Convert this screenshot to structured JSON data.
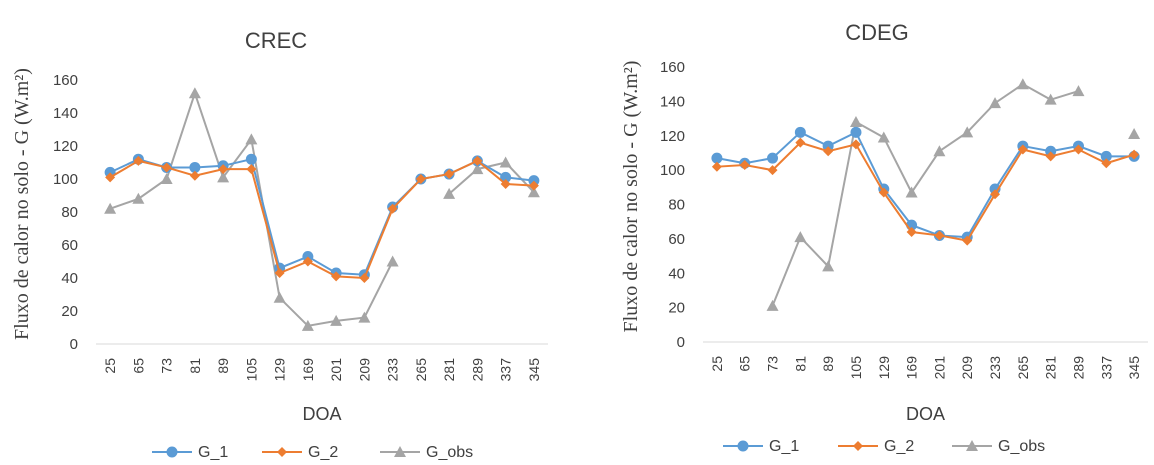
{
  "chart_data": [
    {
      "type": "line",
      "title": "CREC",
      "xlabel": "DOA",
      "ylabel": "Fluxo  de calor no solo - G  (W.m²)",
      "ylim": [
        0,
        160
      ],
      "yticks": [
        0,
        20,
        40,
        60,
        80,
        100,
        120,
        140,
        160
      ],
      "categories": [
        "25",
        "65",
        "73",
        "81",
        "89",
        "105",
        "129",
        "169",
        "201",
        "209",
        "233",
        "265",
        "281",
        "289",
        "337",
        "345"
      ],
      "series": [
        {
          "name": "G_1",
          "color": "#5b9bd5",
          "marker": "circle",
          "values": [
            104,
            112,
            107,
            107,
            108,
            112,
            46,
            53,
            43,
            42,
            83,
            100,
            103,
            111,
            101,
            99
          ]
        },
        {
          "name": "G_2",
          "color": "#ed7d31",
          "marker": "diamond",
          "values": [
            101,
            111,
            107,
            102,
            106,
            106,
            43,
            50,
            41,
            40,
            82,
            100,
            103,
            111,
            97,
            96
          ]
        },
        {
          "name": "G_obs",
          "color": "#a5a5a5",
          "marker": "triangle",
          "values": [
            82,
            88,
            100,
            152,
            101,
            124,
            28,
            11,
            14,
            16,
            50,
            null,
            91,
            106,
            110,
            92
          ]
        }
      ],
      "legend": "bottom",
      "grid": false
    },
    {
      "type": "line",
      "title": "CDEG",
      "xlabel": "DOA",
      "ylabel": "Fluxo  de calor no solo - G  (W.m²)",
      "ylim": [
        0,
        160
      ],
      "yticks": [
        0,
        20,
        40,
        60,
        80,
        100,
        120,
        140,
        160
      ],
      "categories": [
        "25",
        "65",
        "73",
        "81",
        "89",
        "105",
        "129",
        "169",
        "201",
        "209",
        "233",
        "265",
        "281",
        "289",
        "337",
        "345"
      ],
      "series": [
        {
          "name": "G_1",
          "color": "#5b9bd5",
          "marker": "circle",
          "values": [
            107,
            104,
            107,
            122,
            114,
            122,
            89,
            68,
            62,
            61,
            89,
            114,
            111,
            114,
            108,
            108
          ]
        },
        {
          "name": "G_2",
          "color": "#ed7d31",
          "marker": "diamond",
          "values": [
            102,
            103,
            100,
            116,
            111,
            115,
            87,
            64,
            62,
            59,
            86,
            112,
            108,
            112,
            104,
            109
          ]
        },
        {
          "name": "G_obs",
          "color": "#a5a5a5",
          "marker": "triangle",
          "values": [
            null,
            null,
            21,
            61,
            44,
            128,
            119,
            87,
            111,
            122,
            139,
            150,
            141,
            146,
            null,
            121
          ]
        }
      ],
      "legend": "bottom",
      "grid": false
    }
  ]
}
